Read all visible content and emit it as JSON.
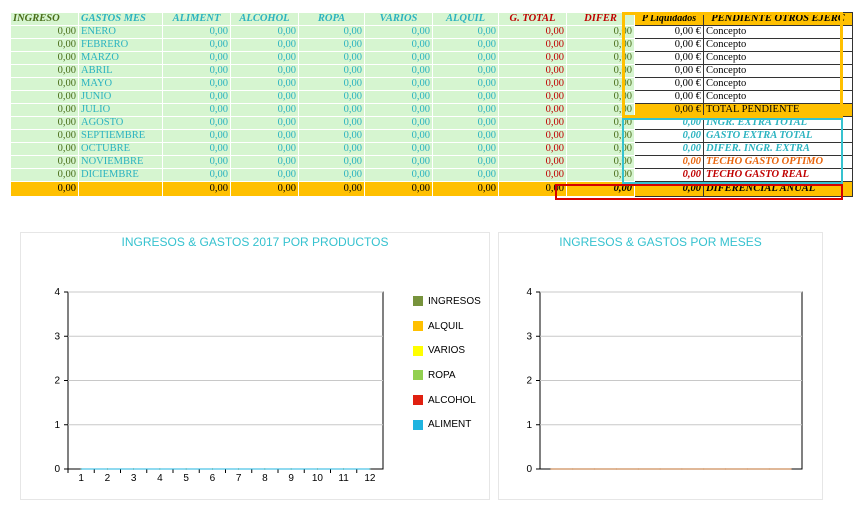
{
  "headers": [
    "INGRESO",
    "GASTOS MES",
    "ALIMENT",
    "ALCOHOL",
    "ROPA",
    "VARIOS",
    "ALQUIL",
    "G. TOTAL",
    "DIFER"
  ],
  "p_liquidados_header": "P Liquidados",
  "pendiente_header": "PENDIENTE OTROS EJERC",
  "rows": [
    {
      "ingreso": "0,00",
      "mes": "ENERO",
      "values": [
        "0,00",
        "0,00",
        "0,00",
        "0,00",
        "0,00",
        "0,00",
        "0,00"
      ]
    },
    {
      "ingreso": "0,00",
      "mes": "FEBRERO",
      "values": [
        "0,00",
        "0,00",
        "0,00",
        "0,00",
        "0,00",
        "0,00",
        "0,00"
      ]
    },
    {
      "ingreso": "0,00",
      "mes": "MARZO",
      "values": [
        "0,00",
        "0,00",
        "0,00",
        "0,00",
        "0,00",
        "0,00",
        "0,00"
      ]
    },
    {
      "ingreso": "0,00",
      "mes": "ABRIL",
      "values": [
        "0,00",
        "0,00",
        "0,00",
        "0,00",
        "0,00",
        "0,00",
        "0,00"
      ]
    },
    {
      "ingreso": "0,00",
      "mes": "MAYO",
      "values": [
        "0,00",
        "0,00",
        "0,00",
        "0,00",
        "0,00",
        "0,00",
        "0,00"
      ]
    },
    {
      "ingreso": "0,00",
      "mes": "JUNIO",
      "values": [
        "0,00",
        "0,00",
        "0,00",
        "0,00",
        "0,00",
        "0,00",
        "0,00"
      ]
    },
    {
      "ingreso": "0,00",
      "mes": "JULIO",
      "values": [
        "0,00",
        "0,00",
        "0,00",
        "0,00",
        "0,00",
        "0,00",
        "0,00"
      ]
    },
    {
      "ingreso": "0,00",
      "mes": "AGOSTO",
      "values": [
        "0,00",
        "0,00",
        "0,00",
        "0,00",
        "0,00",
        "0,00",
        "0,00"
      ]
    },
    {
      "ingreso": "0,00",
      "mes": "SEPTIEMBRE",
      "values": [
        "0,00",
        "0,00",
        "0,00",
        "0,00",
        "0,00",
        "0,00",
        "0,00"
      ]
    },
    {
      "ingreso": "0,00",
      "mes": "OCTUBRE",
      "values": [
        "0,00",
        "0,00",
        "0,00",
        "0,00",
        "0,00",
        "0,00",
        "0,00"
      ]
    },
    {
      "ingreso": "0,00",
      "mes": "NOVIEMBRE",
      "values": [
        "0,00",
        "0,00",
        "0,00",
        "0,00",
        "0,00",
        "0,00",
        "0,00"
      ]
    },
    {
      "ingreso": "0,00",
      "mes": "DICIEMBRE",
      "values": [
        "0,00",
        "0,00",
        "0,00",
        "0,00",
        "0,00",
        "0,00",
        "0,00"
      ]
    }
  ],
  "totals": {
    "ingreso": "0,00",
    "mes": "",
    "values": [
      "0,00",
      "0,00",
      "0,00",
      "0,00",
      "0,00",
      "0,00",
      "0,00"
    ]
  },
  "pendiente": [
    {
      "amount": "0,00 €",
      "label": "Concepto"
    },
    {
      "amount": "0,00 €",
      "label": "Concepto"
    },
    {
      "amount": "0,00 €",
      "label": "Concepto"
    },
    {
      "amount": "0,00 €",
      "label": "Concepto"
    },
    {
      "amount": "0,00 €",
      "label": "Concepto"
    },
    {
      "amount": "0,00 €",
      "label": "Concepto"
    }
  ],
  "total_pendiente": {
    "amount": "0,00 €",
    "label": "TOTAL PENDIENTE"
  },
  "extras": [
    {
      "amount": "0,00",
      "label": "INGR. EXTRA TOTAL",
      "color": "#2bb3c0"
    },
    {
      "amount": "0,00",
      "label": "GASTO EXTRA TOTAL",
      "color": "#2bb3c0"
    },
    {
      "amount": "0,00",
      "label": "DIFER. INGR. EXTRA",
      "color": "#2bb3c0"
    },
    {
      "amount": "0,00",
      "label": "TECHO GASTO OPTIMO",
      "color": "#e8640c"
    },
    {
      "amount": "0,00",
      "label": "TECHO GASTO REAL",
      "color": "#c00000"
    }
  ],
  "diferencial_anual": {
    "amount": "0,00",
    "label": "DIFERENCIAL ANUAL"
  },
  "colors": {
    "accent_teal": "#36c2cf",
    "highlight_yellow": "#ffc000",
    "cell_green": "#d6f5d0",
    "alert_red": "#c00000"
  },
  "chart_data": [
    {
      "type": "line",
      "title": "INGRESOS & GASTOS 2017 POR PRODUCTOS",
      "categories": [
        "1",
        "2",
        "3",
        "4",
        "5",
        "6",
        "7",
        "8",
        "9",
        "10",
        "11",
        "12"
      ],
      "ylim": [
        0,
        4
      ],
      "yticks": [
        "0",
        "1",
        "2",
        "3",
        "4"
      ],
      "legend_position": "right",
      "series": [
        {
          "name": "INGRESOS",
          "color": "#77933c",
          "values": [
            0,
            0,
            0,
            0,
            0,
            0,
            0,
            0,
            0,
            0,
            0,
            0
          ]
        },
        {
          "name": "ALQUIL",
          "color": "#ffc000",
          "values": [
            0,
            0,
            0,
            0,
            0,
            0,
            0,
            0,
            0,
            0,
            0,
            0
          ]
        },
        {
          "name": "VARIOS",
          "color": "#ffff00",
          "values": [
            0,
            0,
            0,
            0,
            0,
            0,
            0,
            0,
            0,
            0,
            0,
            0
          ]
        },
        {
          "name": "ROPA",
          "color": "#92d050",
          "values": [
            0,
            0,
            0,
            0,
            0,
            0,
            0,
            0,
            0,
            0,
            0,
            0
          ]
        },
        {
          "name": "ALCOHOL",
          "color": "#e02010",
          "values": [
            0,
            0,
            0,
            0,
            0,
            0,
            0,
            0,
            0,
            0,
            0,
            0
          ]
        },
        {
          "name": "ALIMENT",
          "color": "#1fb4e0",
          "values": [
            0,
            0,
            0,
            0,
            0,
            0,
            0,
            0,
            0,
            0,
            0,
            0
          ]
        }
      ]
    },
    {
      "type": "line",
      "title": "INGRESOS & GASTOS POR MESES",
      "ylim": [
        0,
        4
      ],
      "yticks": [
        "0",
        "1",
        "2",
        "3",
        "4"
      ],
      "series": [
        {
          "name": "",
          "color": "#c07030",
          "values": [
            0,
            0,
            0,
            0,
            0,
            0,
            0,
            0,
            0,
            0,
            0,
            0
          ]
        }
      ]
    }
  ]
}
